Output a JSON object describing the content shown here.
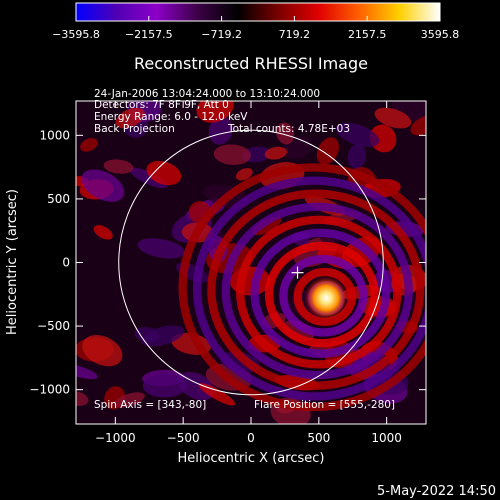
{
  "chart_data": {
    "type": "heatmap",
    "title": "Reconstructed RHESSI Image",
    "xlabel": "Heliocentric X (arcsec)",
    "ylabel": "Heliocentric Y (arcsec)",
    "xlim": [
      -1290,
      1290
    ],
    "ylim": [
      -1270,
      1270
    ],
    "x_ticks": [
      -1000,
      -500,
      0,
      500,
      1000
    ],
    "y_ticks": [
      -1000,
      -500,
      0,
      500,
      1000
    ],
    "x_tick_labels": [
      "−1000",
      "−500",
      "0",
      "500",
      "1000"
    ],
    "y_tick_labels": [
      "−1000",
      "−500",
      "0",
      "500",
      "1000"
    ],
    "colorbar": {
      "range": [
        -3595.8,
        3595.8
      ],
      "tick_values": [
        -3595.8,
        -2157.5,
        -719.2,
        719.2,
        2157.5,
        3595.8
      ],
      "tick_labels": [
        "−3595.8",
        "−2157.5",
        "−719.2",
        "719.2",
        "2157.5",
        "3595.8"
      ],
      "colors": [
        "#0000ff",
        "#5000b4",
        "#8c00c8",
        "#3c0046",
        "#000000",
        "#7a0000",
        "#e00000",
        "#ff6000",
        "#ffd000",
        "#ffffff"
      ]
    },
    "info_lines": [
      "24-Jan-2006 13:04:24.000 to 13:10:24.000",
      "Detectors: 7F 8F 9F, Att 0",
      "Energy Range: 6.0 - 12.0 keV",
      "Back Projection"
    ],
    "total_counts": "Total counts: 4.78E+03",
    "spin_axis_label": "Spin Axis = [343,-80]",
    "flare_position_label": "Flare Position = [555,-280]",
    "spin_axis": [
      343,
      -80
    ],
    "flare_position": [
      555,
      -280
    ],
    "solar_radius_arcsec": 975,
    "ring_center": [
      555,
      -280
    ],
    "ring_spacing_arcsec": 190
  },
  "date_stamp": "5-May-2022 14:50"
}
